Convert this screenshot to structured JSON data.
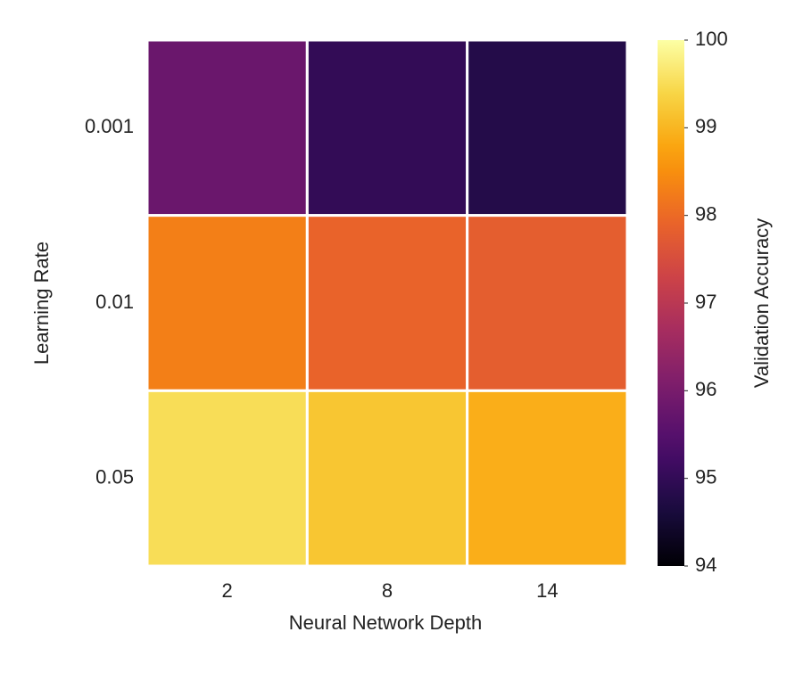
{
  "chart_data": {
    "type": "heatmap",
    "xlabel": "Neural Network Depth",
    "ylabel": "Learning Rate",
    "x_categories": [
      "2",
      "8",
      "14"
    ],
    "y_categories": [
      "0.001",
      "0.01",
      "0.05"
    ],
    "values": [
      [
        95.8,
        95.0,
        94.8
      ],
      [
        98.3,
        97.9,
        97.8
      ],
      [
        99.5,
        99.2,
        98.9
      ]
    ],
    "colormap": "inferno",
    "colorbar_label": "Validation Accuracy",
    "clim": [
      94,
      100
    ],
    "cticks": [
      94,
      95,
      96,
      97,
      98,
      99,
      100
    ]
  }
}
